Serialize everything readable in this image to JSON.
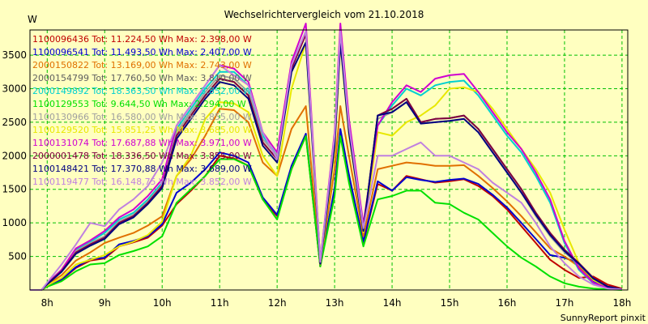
{
  "chart_data": {
    "type": "line",
    "title": "Wechselrichtervergleich vom 21.10.2018",
    "ylabel": "W",
    "credit": "SunnyReport pinxit",
    "ylim": [
      0,
      3875
    ],
    "xlim": [
      7.7,
      18.1
    ],
    "yticks": [
      500,
      1000,
      1500,
      2000,
      2500,
      3000,
      3500
    ],
    "xticks": [
      8,
      9,
      10,
      11,
      12,
      13,
      14,
      15,
      16,
      17,
      18
    ],
    "xtick_labels": [
      "8h",
      "9h",
      "10h",
      "11h",
      "12h",
      "13h",
      "14h",
      "15h",
      "16h",
      "17h",
      "18h"
    ],
    "grid": true,
    "legend_position": "top-left",
    "x": [
      7.7,
      7.9,
      8.0,
      8.25,
      8.5,
      8.75,
      9.0,
      9.25,
      9.5,
      9.75,
      10.0,
      10.25,
      10.5,
      10.75,
      11.0,
      11.25,
      11.5,
      11.75,
      12.0,
      12.25,
      12.5,
      12.75,
      13.0,
      13.1,
      13.25,
      13.5,
      13.75,
      14.0,
      14.25,
      14.5,
      14.75,
      15.0,
      15.25,
      15.5,
      15.75,
      16.0,
      16.25,
      16.5,
      16.75,
      17.0,
      17.25,
      17.5,
      17.75,
      18.0
    ],
    "series": [
      {
        "name": "1100096436 Tot: 11.224,50 Wh Max: 2.398,00 W",
        "color": "#c00000",
        "values": [
          0,
          0,
          60,
          150,
          330,
          440,
          470,
          650,
          710,
          780,
          960,
          1280,
          1480,
          1700,
          2000,
          1960,
          1850,
          1350,
          1100,
          1800,
          2300,
          350,
          1500,
          2380,
          1700,
          700,
          1580,
          1480,
          1700,
          1650,
          1600,
          1620,
          1650,
          1550,
          1400,
          1200,
          950,
          700,
          450,
          300,
          180,
          200,
          80,
          20
        ]
      },
      {
        "name": "1100096541 Tot: 11.493,50 Wh Max: 2.407,00 W",
        "color": "#0000d0",
        "values": [
          0,
          0,
          60,
          160,
          340,
          460,
          480,
          680,
          730,
          800,
          980,
          1450,
          1600,
          1800,
          2050,
          2000,
          1900,
          1380,
          1120,
          1850,
          2330,
          360,
          1520,
          2400,
          1720,
          720,
          1620,
          1480,
          1680,
          1640,
          1610,
          1640,
          1660,
          1580,
          1420,
          1230,
          1000,
          760,
          520,
          480,
          400,
          120,
          40,
          10
        ]
      },
      {
        "name": "2000150822 Tot: 13.169,00 Wh Max: 2.743,00 W",
        "color": "#e07000",
        "values": [
          0,
          0,
          80,
          220,
          440,
          560,
          700,
          780,
          850,
          960,
          1100,
          1700,
          1950,
          2300,
          2700,
          2680,
          2500,
          1900,
          1700,
          2400,
          2740,
          380,
          1800,
          2740,
          2000,
          800,
          1800,
          1850,
          1900,
          1880,
          1850,
          1850,
          1860,
          1700,
          1520,
          1320,
          1100,
          860,
          620,
          500,
          350,
          150,
          50,
          10
        ]
      },
      {
        "name": "2000154799 Tot: 17.760,50 Wh Max: 3.810,00 W",
        "color": "#606060",
        "values": [
          0,
          0,
          90,
          280,
          560,
          680,
          780,
          1000,
          1100,
          1300,
          1550,
          2300,
          2600,
          2900,
          3150,
          3100,
          2900,
          2200,
          1950,
          3300,
          3810,
          400,
          2200,
          3810,
          2400,
          900,
          2600,
          2700,
          2850,
          2500,
          2550,
          2560,
          2600,
          2400,
          2100,
          1800,
          1500,
          1150,
          850,
          600,
          400,
          180,
          50,
          10
        ]
      },
      {
        "name": "2000149892 Tot: 18.363,50 Wh Max: 3.852,00 W",
        "color": "#00d0d0",
        "values": [
          0,
          0,
          100,
          300,
          600,
          720,
          850,
          1050,
          1150,
          1350,
          1600,
          2400,
          2700,
          3000,
          3250,
          3250,
          3050,
          2300,
          2000,
          3350,
          3852,
          420,
          2300,
          3852,
          2500,
          950,
          2450,
          2750,
          3000,
          2900,
          3050,
          3100,
          3120,
          2900,
          2600,
          2300,
          2050,
          1700,
          1300,
          700,
          300,
          100,
          30,
          10
        ]
      },
      {
        "name": "1100129553 Tot: 9.644,50 Wh Max: 2.294,00 W",
        "color": "#00e000",
        "values": [
          0,
          0,
          50,
          130,
          280,
          380,
          400,
          520,
          580,
          650,
          800,
          1300,
          1500,
          1700,
          1950,
          1950,
          1850,
          1350,
          1050,
          1800,
          2294,
          350,
          1400,
          2294,
          1600,
          650,
          1350,
          1400,
          1480,
          1480,
          1300,
          1280,
          1150,
          1050,
          850,
          650,
          480,
          350,
          200,
          100,
          50,
          20,
          10,
          0
        ]
      },
      {
        "name": "1100130966 Tot: 16.580,00 Wh Max: 3.855,00 W",
        "color": "#a0a0a0",
        "values": [
          0,
          0,
          95,
          290,
          580,
          700,
          800,
          1020,
          1120,
          1320,
          1570,
          2350,
          2650,
          2950,
          3200,
          3150,
          2950,
          2250,
          2000,
          3320,
          3855,
          410,
          2250,
          3855,
          2450,
          920,
          2550,
          2650,
          2800,
          2480,
          2500,
          2520,
          2550,
          2350,
          2050,
          1750,
          1450,
          1100,
          800,
          560,
          380,
          160,
          50,
          10
        ]
      },
      {
        "name": "1100129520 Tot: 15.851,25 Wh Max: 3.685,00 W",
        "color": "#e8e800",
        "values": [
          0,
          0,
          70,
          180,
          380,
          450,
          520,
          650,
          720,
          820,
          1020,
          1700,
          2000,
          2550,
          2800,
          2780,
          2650,
          2000,
          1700,
          3000,
          3685,
          380,
          2050,
          3685,
          2300,
          860,
          2350,
          2300,
          2500,
          2600,
          2750,
          3000,
          3020,
          2950,
          2700,
          2400,
          2100,
          1800,
          1450,
          900,
          400,
          150,
          40,
          10
        ]
      },
      {
        "name": "1100131074 Tot: 17.687,88 Wh Max: 3.971,00 W",
        "color": "#d000d0",
        "values": [
          0,
          0,
          100,
          300,
          620,
          740,
          880,
          1080,
          1200,
          1400,
          1650,
          2450,
          2750,
          3050,
          3350,
          3300,
          3100,
          2350,
          2050,
          3400,
          3971,
          430,
          2350,
          3971,
          2550,
          980,
          2450,
          2800,
          3050,
          2950,
          3150,
          3200,
          3220,
          2950,
          2650,
          2350,
          2100,
          1750,
          1350,
          730,
          320,
          110,
          30,
          10
        ]
      },
      {
        "name": "2000001478 Tot: 18.336,50 Wh Max: 3.855,00 W",
        "color": "#800040",
        "values": [
          0,
          0,
          90,
          280,
          560,
          680,
          780,
          1000,
          1100,
          1300,
          1550,
          2300,
          2600,
          2900,
          3150,
          3100,
          2900,
          2200,
          1950,
          3300,
          3810,
          400,
          2200,
          3810,
          2400,
          900,
          2600,
          2700,
          2850,
          2500,
          2550,
          2560,
          2600,
          2400,
          2100,
          1800,
          1500,
          1150,
          850,
          600,
          400,
          180,
          50,
          10
        ]
      },
      {
        "name": "1100148421 Tot: 17.370,88 Wh Max: 3.689,00 W",
        "color": "#000080",
        "values": [
          0,
          0,
          85,
          270,
          540,
          660,
          760,
          980,
          1080,
          1280,
          1520,
          2250,
          2550,
          2850,
          3100,
          3050,
          2850,
          2150,
          1900,
          3250,
          3689,
          390,
          2150,
          3689,
          2350,
          880,
          2600,
          2650,
          2800,
          2480,
          2500,
          2520,
          2550,
          2350,
          2050,
          1750,
          1450,
          1120,
          820,
          580,
          390,
          170,
          50,
          10
        ]
      },
      {
        "name": "1100119477 Tot: 16.148,75 Wh Max: 3.852,00 W",
        "color": "#c080e0",
        "values": [
          0,
          0,
          110,
          380,
          680,
          1000,
          950,
          1200,
          1350,
          1550,
          1900,
          2450,
          2750,
          3050,
          3350,
          3200,
          3050,
          2350,
          1950,
          3350,
          3852,
          420,
          2300,
          3852,
          2450,
          920,
          2000,
          2000,
          2100,
          2200,
          2000,
          2000,
          1900,
          1800,
          1600,
          1450,
          1300,
          1000,
          650,
          400,
          200,
          80,
          20,
          10
        ]
      }
    ]
  }
}
